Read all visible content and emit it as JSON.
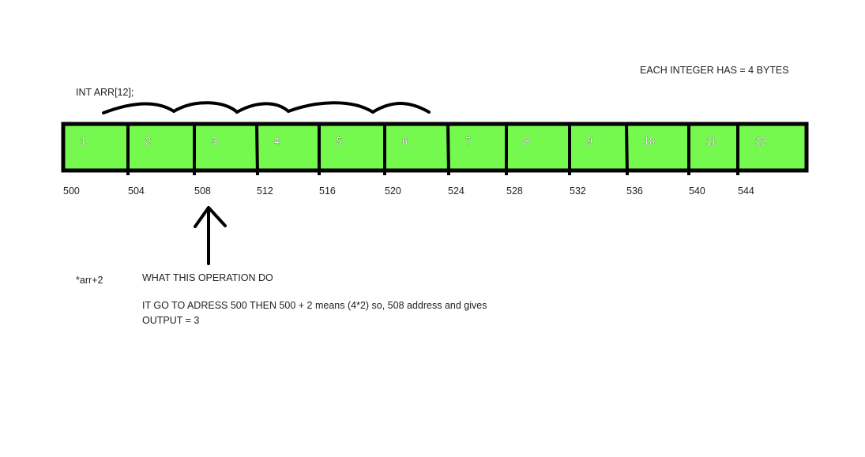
{
  "header_note": "EACH INTEGER HAS = 4 BYTES",
  "declaration": "INT ARR[12];",
  "array": {
    "fill_color": "#76f94e",
    "border_color": "#000000",
    "cells": [
      {
        "value": "1",
        "address": "500"
      },
      {
        "value": "2",
        "address": "504"
      },
      {
        "value": "3",
        "address": "508"
      },
      {
        "value": "4",
        "address": "512"
      },
      {
        "value": "5",
        "address": "516"
      },
      {
        "value": "6",
        "address": "520"
      },
      {
        "value": "7",
        "address": "524"
      },
      {
        "value": "8",
        "address": "528"
      },
      {
        "value": "9",
        "address": "532"
      },
      {
        "value": "10",
        "address": "536"
      },
      {
        "value": "11",
        "address": "540"
      },
      {
        "value": "12",
        "address": "544"
      }
    ]
  },
  "expression": "*arr+2",
  "question": "WHAT THIS OPERATION DO",
  "explanation_line1": "IT GO TO ADRESS 500 THEN 500 + 2 means (4*2) so, 508 address and gives",
  "explanation_line2": "OUTPUT = 3"
}
